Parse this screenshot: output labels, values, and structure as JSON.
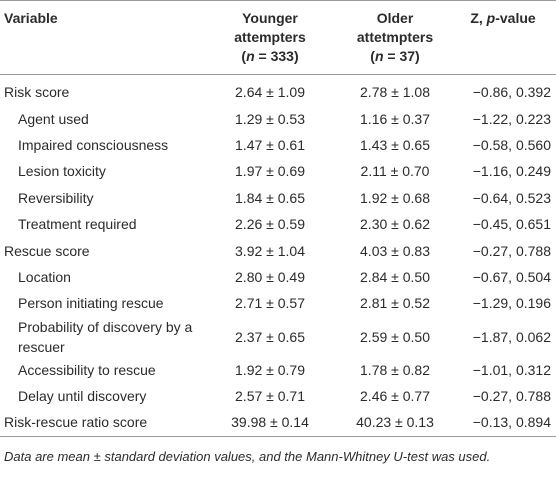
{
  "table": {
    "header": [
      {
        "lines": [
          [
            {
              "text": "Variable"
            }
          ]
        ]
      },
      {
        "lines": [
          [
            {
              "text": "Younger"
            }
          ],
          [
            {
              "text": "attempters"
            }
          ],
          [
            {
              "text": "("
            },
            {
              "text": "n",
              "italic": true
            },
            {
              "text": " = 333)"
            }
          ]
        ]
      },
      {
        "lines": [
          [
            {
              "text": "Older"
            }
          ],
          [
            {
              "text": "attetmpters"
            }
          ],
          [
            {
              "text": "("
            },
            {
              "text": "n",
              "italic": true
            },
            {
              "text": " = 37)"
            }
          ]
        ]
      },
      {
        "lines": [
          [
            {
              "text": "Z, "
            },
            {
              "text": "p",
              "italic": true
            },
            {
              "text": "-value"
            }
          ]
        ]
      }
    ],
    "rows": [
      {
        "label": "Risk score",
        "indent": false,
        "cells": [
          "2.64 ± 1.09",
          "2.78 ± 1.08",
          "−0.86, 0.392"
        ]
      },
      {
        "label": "Agent used",
        "indent": true,
        "cells": [
          "1.29 ± 0.53",
          "1.16 ± 0.37",
          "−1.22, 0.223"
        ]
      },
      {
        "label": "Impaired consciousness",
        "indent": true,
        "cells": [
          "1.47 ± 0.61",
          "1.43 ± 0.65",
          "−0.58, 0.560"
        ]
      },
      {
        "label": "Lesion toxicity",
        "indent": true,
        "cells": [
          "1.97 ± 0.69",
          "2.11 ± 0.70",
          "−1.16, 0.249"
        ]
      },
      {
        "label": "Reversibility",
        "indent": true,
        "cells": [
          "1.84 ± 0.65",
          "1.92 ± 0.68",
          "−0.64, 0.523"
        ]
      },
      {
        "label": "Treatment required",
        "indent": true,
        "cells": [
          "2.26 ± 0.59",
          "2.30 ± 0.62",
          "−0.45, 0.651"
        ]
      },
      {
        "label": "Rescue score",
        "indent": false,
        "cells": [
          "3.92 ± 1.04",
          "4.03 ± 0.83",
          "−0.27, 0.788"
        ]
      },
      {
        "label": "Location",
        "indent": true,
        "cells": [
          "2.80 ± 0.49",
          "2.84 ± 0.50",
          "−0.67, 0.504"
        ]
      },
      {
        "label": "Person initiating rescue",
        "indent": true,
        "cells": [
          "2.71 ± 0.57",
          "2.81 ± 0.52",
          "−1.29, 0.196"
        ]
      },
      {
        "label": "Probability of discovery by a rescuer",
        "indent": true,
        "cells": [
          "2.37 ± 0.65",
          "2.59 ± 0.50",
          "−1.87, 0.062"
        ]
      },
      {
        "label": "Accessibility to rescue",
        "indent": true,
        "cells": [
          "1.92 ± 0.79",
          "1.78 ± 0.82",
          "−1.01, 0.312"
        ]
      },
      {
        "label": "Delay until discovery",
        "indent": true,
        "cells": [
          "2.57 ± 0.71",
          "2.46 ± 0.77",
          "−0.27, 0.788"
        ]
      },
      {
        "label": "Risk-rescue ratio score",
        "indent": false,
        "cells": [
          "39.98 ± 0.14",
          "40.23 ± 0.13",
          "−0.13, 0.894"
        ]
      }
    ],
    "footnote": "Data are mean ± standard deviation values, and the Mann-Whitney U-test was used."
  }
}
